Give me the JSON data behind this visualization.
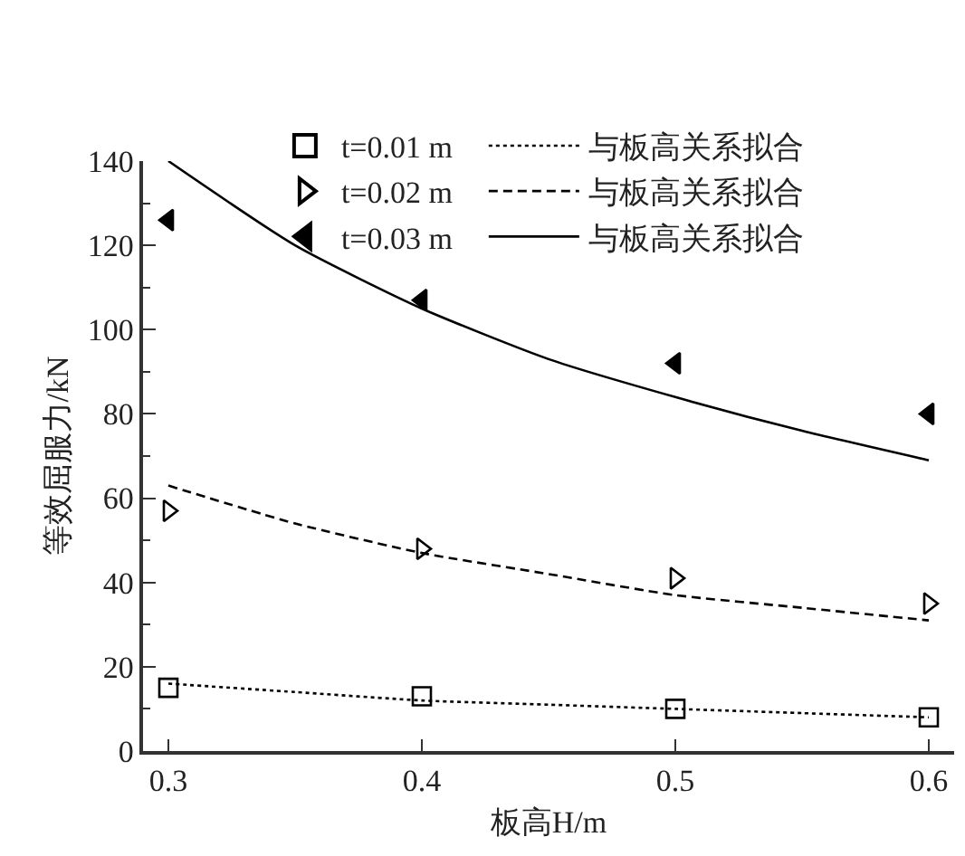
{
  "chart_data": {
    "type": "scatter",
    "xlabel": "板高H/m",
    "ylabel": "等效屈服力/kN",
    "xlim": [
      0.29,
      0.61
    ],
    "xticks": [
      0.3,
      0.4,
      0.5,
      0.6
    ],
    "ylim": [
      0,
      140
    ],
    "yticks": [
      0,
      {
        "value": 10,
        "label": null
      },
      20,
      {
        "value": 30,
        "label": null
      },
      40,
      {
        "value": 50,
        "label": null
      },
      60,
      {
        "value": 70,
        "label": null
      },
      80,
      {
        "value": 90,
        "label": null
      },
      100,
      {
        "value": 110,
        "label": null
      },
      120,
      {
        "value": 130,
        "label": null
      },
      140
    ],
    "legend": "top right",
    "series": [
      {
        "name": "t=0.01 m",
        "marker": "square-open",
        "color": "#000000",
        "x": [
          0.3,
          0.4,
          0.5,
          0.6
        ],
        "values": [
          15,
          13,
          10,
          8
        ]
      },
      {
        "name": "与板高关系拟合",
        "type": "line",
        "line_style": "dotted",
        "marker": "none",
        "color": "#000000",
        "x": [
          0.3,
          0.35,
          0.4,
          0.45,
          0.5,
          0.55,
          0.6
        ],
        "values": [
          16,
          14,
          12,
          11,
          10,
          9,
          8
        ]
      },
      {
        "name": "t=0.02 m",
        "marker": "triangle-right-open",
        "color": "#000000",
        "x": [
          0.3,
          0.4,
          0.5,
          0.6
        ],
        "values": [
          57,
          48,
          41,
          35
        ]
      },
      {
        "name": "与板高关系拟合",
        "type": "line",
        "line_style": "dashed",
        "marker": "none",
        "color": "#000000",
        "x": [
          0.3,
          0.35,
          0.4,
          0.45,
          0.5,
          0.55,
          0.6
        ],
        "values": [
          63,
          54,
          47,
          42,
          37,
          34,
          31
        ]
      },
      {
        "name": "t=0.03 m",
        "marker": "triangle-left",
        "color": "#000000",
        "x": [
          0.3,
          0.4,
          0.5,
          0.6
        ],
        "values": [
          126,
          107,
          92,
          80
        ]
      },
      {
        "name": "与板高关系拟合",
        "type": "line",
        "line_style": "solid",
        "marker": "none",
        "color": "#000000",
        "x": [
          0.3,
          0.35,
          0.4,
          0.45,
          0.5,
          0.55,
          0.6
        ],
        "values": [
          140,
          120,
          105,
          93,
          84,
          76,
          69
        ]
      }
    ]
  }
}
